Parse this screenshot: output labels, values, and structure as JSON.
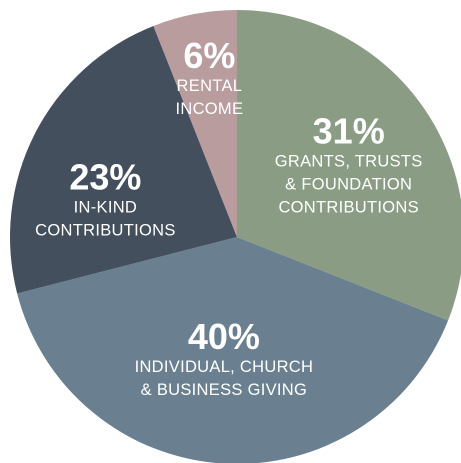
{
  "chart_data": {
    "type": "pie",
    "slices": [
      {
        "value": 31,
        "percent_label": "31%",
        "label_lines": [
          "GRANTS, TRUSTS",
          "& FOUNDATION",
          "CONTRIBUTIONS"
        ],
        "color": "#8a9d84"
      },
      {
        "value": 40,
        "percent_label": "40%",
        "label_lines": [
          "INDIVIDUAL, CHURCH",
          "& BUSINESS GIVING"
        ],
        "color": "#6a8090"
      },
      {
        "value": 23,
        "percent_label": "23%",
        "label_lines": [
          "IN-KIND",
          "CONTRIBUTIONS"
        ],
        "color": "#444f5e"
      },
      {
        "value": 6,
        "percent_label": "6%",
        "label_lines": [
          "RENTAL",
          "INCOME"
        ],
        "color": "#b89c9e"
      }
    ]
  }
}
